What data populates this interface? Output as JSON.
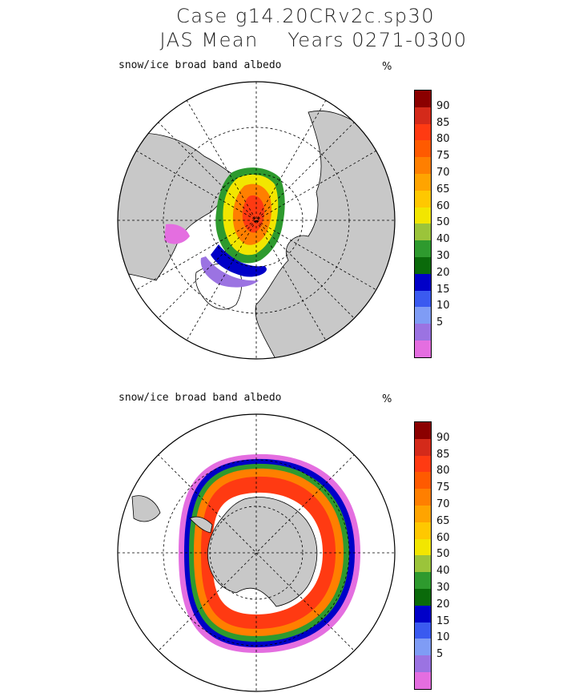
{
  "header": {
    "line1": "Case g14.20CRv2c.sp30",
    "line2": "JAS Mean    Years 0271-0300"
  },
  "panels": [
    {
      "label": "snow/ice broad band albedo",
      "unit": "%",
      "hemisphere": "north"
    },
    {
      "label": "snow/ice broad band albedo",
      "unit": "%",
      "hemisphere": "south"
    }
  ],
  "colorbar": {
    "tick_labels": [
      "90",
      "85",
      "80",
      "75",
      "70",
      "65",
      "60",
      "50",
      "40",
      "30",
      "20",
      "15",
      "10",
      "5"
    ],
    "colors": [
      "#8b0000",
      "#d42a1a",
      "#ff3a12",
      "#ff5a00",
      "#ff7f00",
      "#ffa400",
      "#ffc800",
      "#f2e600",
      "#9bc43a",
      "#2e9a2e",
      "#0a6a0a",
      "#0000c8",
      "#3a5af0",
      "#7f9cf5",
      "#9b73e2",
      "#e46ee0"
    ]
  },
  "colors": {
    "land": "#c8c8c8",
    "ocean": "#ffffff",
    "grid": "#000000"
  }
}
